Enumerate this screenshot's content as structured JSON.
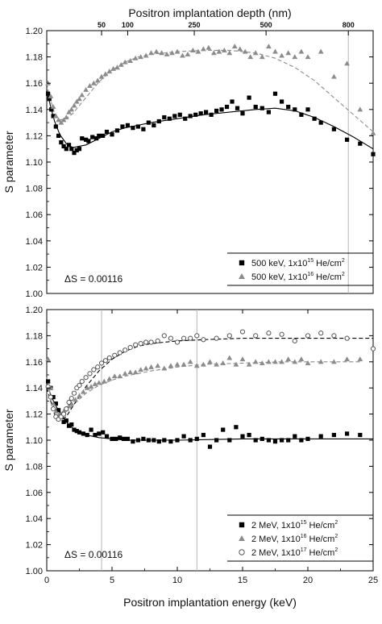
{
  "chart_data": [
    {
      "type": "scatter",
      "panel": "top",
      "title": "",
      "top_axis_label": "Positron implantation depth (nm)",
      "top_ticks": [
        "50",
        "100",
        "250",
        "500",
        "800"
      ],
      "top_ticks_energy_keV": [
        4.2,
        6.2,
        11.3,
        16.8,
        23.1
      ],
      "xlabel": "",
      "ylabel": "S parameter",
      "xlim": [
        0,
        25
      ],
      "ylim": [
        1.0,
        1.2
      ],
      "yticks": [
        "1.00",
        "1.02",
        "1.04",
        "1.06",
        "1.08",
        "1.10",
        "1.12",
        "1.14",
        "1.16",
        "1.18",
        "1.20"
      ],
      "vlines_keV": [
        23.1
      ],
      "annotation": "ΔS = 0.00116",
      "legend_position": "bottom-right",
      "series": [
        {
          "name": "500 keV, 1x10^15 He/cm^2",
          "legend_main": "500 keV, 1x10",
          "legend_exp": "15",
          "legend_unit": "He/cm",
          "legend_unit_exp": "2",
          "marker": "square",
          "color": "#000000",
          "x": [
            0.1,
            0.2,
            0.35,
            0.5,
            0.7,
            0.9,
            1.1,
            1.3,
            1.5,
            1.7,
            1.9,
            2.1,
            2.3,
            2.5,
            2.7,
            3.0,
            3.2,
            3.5,
            3.8,
            4.0,
            4.3,
            4.6,
            5.0,
            5.4,
            5.8,
            6.2,
            6.6,
            7.0,
            7.4,
            7.8,
            8.2,
            8.6,
            9.0,
            9.4,
            9.8,
            10.2,
            10.6,
            11.0,
            11.4,
            11.8,
            12.2,
            12.6,
            13.0,
            13.4,
            13.8,
            14.2,
            14.6,
            15.0,
            15.5,
            16.0,
            16.5,
            17.0,
            17.5,
            18.0,
            18.5,
            19.0,
            19.5,
            20.0,
            20.5,
            21.0,
            22.0,
            23.0,
            24.0,
            25.0
          ],
          "y": [
            1.152,
            1.148,
            1.14,
            1.135,
            1.127,
            1.12,
            1.115,
            1.112,
            1.11,
            1.113,
            1.11,
            1.107,
            1.109,
            1.11,
            1.118,
            1.117,
            1.116,
            1.119,
            1.118,
            1.12,
            1.12,
            1.123,
            1.121,
            1.124,
            1.127,
            1.128,
            1.126,
            1.127,
            1.125,
            1.13,
            1.128,
            1.131,
            1.134,
            1.133,
            1.135,
            1.136,
            1.133,
            1.135,
            1.136,
            1.137,
            1.138,
            1.136,
            1.139,
            1.14,
            1.142,
            1.146,
            1.141,
            1.137,
            1.149,
            1.142,
            1.141,
            1.138,
            1.152,
            1.146,
            1.142,
            1.14,
            1.136,
            1.14,
            1.133,
            1.13,
            1.125,
            1.117,
            1.114,
            1.106
          ]
        },
        {
          "name": "500 keV, 1x10^16 He/cm^2",
          "legend_main": "500 keV, 1x10",
          "legend_exp": "16",
          "legend_unit": "He/cm",
          "legend_unit_exp": "2",
          "marker": "triangle",
          "color": "#8c8c8c",
          "x": [
            0.1,
            0.3,
            0.5,
            0.7,
            0.9,
            1.1,
            1.3,
            1.5,
            1.7,
            1.9,
            2.1,
            2.3,
            2.5,
            2.7,
            3.0,
            3.3,
            3.6,
            3.9,
            4.2,
            4.5,
            4.8,
            5.1,
            5.4,
            5.7,
            6.0,
            6.4,
            6.8,
            7.2,
            7.6,
            8.0,
            8.4,
            8.8,
            9.2,
            9.6,
            10.0,
            10.4,
            10.8,
            11.2,
            11.6,
            12.0,
            12.4,
            12.8,
            13.2,
            13.6,
            14.0,
            14.4,
            14.8,
            15.2,
            15.6,
            16.0,
            16.5,
            17.0,
            17.5,
            18.0,
            18.5,
            19.0,
            19.5,
            20.0,
            21.0,
            22.0,
            23.0,
            24.0,
            25.0
          ],
          "y": [
            1.16,
            1.15,
            1.142,
            1.135,
            1.132,
            1.13,
            1.132,
            1.134,
            1.138,
            1.14,
            1.143,
            1.146,
            1.148,
            1.151,
            1.155,
            1.158,
            1.16,
            1.162,
            1.165,
            1.167,
            1.169,
            1.171,
            1.172,
            1.174,
            1.176,
            1.177,
            1.179,
            1.18,
            1.181,
            1.183,
            1.184,
            1.183,
            1.182,
            1.183,
            1.184,
            1.181,
            1.182,
            1.185,
            1.184,
            1.186,
            1.187,
            1.183,
            1.184,
            1.185,
            1.183,
            1.188,
            1.186,
            1.184,
            1.18,
            1.183,
            1.18,
            1.188,
            1.184,
            1.181,
            1.183,
            1.18,
            1.184,
            1.18,
            1.184,
            1.165,
            1.175,
            1.14,
            1.122
          ]
        }
      ],
      "fits": [
        {
          "name": "fit-500keV-1e15",
          "style": "solid",
          "color": "#000000",
          "x": [
            0,
            0.3,
            0.6,
            1.0,
            1.5,
            2.0,
            3.0,
            4.0,
            5.0,
            6.0,
            8.0,
            10.0,
            12.0,
            14.0,
            16.0,
            17.5,
            19.0,
            20.5,
            22.0,
            23.5,
            25.0
          ],
          "y": [
            1.155,
            1.142,
            1.131,
            1.121,
            1.114,
            1.111,
            1.113,
            1.118,
            1.123,
            1.126,
            1.13,
            1.133,
            1.136,
            1.138,
            1.14,
            1.141,
            1.139,
            1.134,
            1.127,
            1.119,
            1.11
          ]
        },
        {
          "name": "fit-500keV-1e16",
          "style": "dashed",
          "color": "#8c8c8c",
          "x": [
            0,
            0.3,
            0.6,
            1.0,
            1.5,
            2.0,
            3.0,
            4.0,
            5.0,
            6.0,
            7.0,
            8.0,
            10.0,
            12.0,
            14.0,
            16.0,
            17.5,
            19.0,
            20.5,
            22.0,
            23.5,
            25.0
          ],
          "y": [
            1.16,
            1.147,
            1.137,
            1.132,
            1.133,
            1.137,
            1.149,
            1.161,
            1.17,
            1.176,
            1.18,
            1.182,
            1.184,
            1.185,
            1.185,
            1.183,
            1.179,
            1.172,
            1.162,
            1.149,
            1.136,
            1.123
          ]
        }
      ]
    },
    {
      "type": "scatter",
      "panel": "bottom",
      "title": "",
      "xlabel": "Positron implantation energy (keV)",
      "ylabel": "S parameter",
      "xlim": [
        0,
        25
      ],
      "ylim": [
        1.0,
        1.2
      ],
      "xticks": [
        "0",
        "5",
        "10",
        "15",
        "20",
        "25"
      ],
      "yticks": [
        "1.00",
        "1.02",
        "1.04",
        "1.06",
        "1.08",
        "1.10",
        "1.12",
        "1.14",
        "1.16",
        "1.18",
        "1.20"
      ],
      "vlines_keV": [
        4.2,
        11.5
      ],
      "annotation": "ΔS = 0.00116",
      "legend_position": "bottom-right",
      "series": [
        {
          "name": "2 MeV, 1x10^15 He/cm^2",
          "legend_main": "2 MeV, 1x10",
          "legend_exp": "15",
          "legend_unit": "He/cm",
          "legend_unit_exp": "2",
          "marker": "square",
          "color": "#000000",
          "x": [
            0.1,
            0.3,
            0.5,
            0.7,
            0.9,
            1.1,
            1.3,
            1.5,
            1.7,
            1.9,
            2.1,
            2.3,
            2.5,
            2.8,
            3.1,
            3.4,
            3.7,
            4.0,
            4.3,
            4.6,
            5.0,
            5.3,
            5.6,
            5.9,
            6.2,
            6.6,
            7.0,
            7.4,
            7.8,
            8.2,
            8.6,
            9.0,
            9.5,
            10.0,
            10.5,
            11.0,
            11.5,
            12.0,
            12.5,
            13.0,
            13.5,
            14.0,
            14.5,
            15.0,
            15.5,
            16.0,
            16.5,
            17.0,
            17.5,
            18.0,
            18.5,
            19.0,
            19.5,
            20.0,
            21.0,
            22.0,
            23.0,
            24.0
          ],
          "y": [
            1.145,
            1.14,
            1.133,
            1.128,
            1.123,
            1.118,
            1.114,
            1.115,
            1.111,
            1.112,
            1.108,
            1.107,
            1.106,
            1.105,
            1.104,
            1.108,
            1.104,
            1.105,
            1.106,
            1.103,
            1.101,
            1.101,
            1.102,
            1.101,
            1.101,
            1.099,
            1.1,
            1.101,
            1.1,
            1.1,
            1.099,
            1.1,
            1.099,
            1.1,
            1.103,
            1.1,
            1.101,
            1.104,
            1.095,
            1.1,
            1.108,
            1.1,
            1.11,
            1.103,
            1.104,
            1.1,
            1.101,
            1.1,
            1.099,
            1.1,
            1.1,
            1.103,
            1.1,
            1.101,
            1.103,
            1.104,
            1.105,
            1.104
          ]
        },
        {
          "name": "2 MeV, 1x10^16 He/cm^2",
          "legend_main": "2 MeV, 1x10",
          "legend_exp": "16",
          "legend_unit": "He/cm",
          "legend_unit_exp": "2",
          "marker": "triangle",
          "color": "#8c8c8c",
          "x": [
            0.1,
            0.3,
            0.5,
            0.7,
            0.9,
            1.1,
            1.3,
            1.5,
            1.7,
            1.9,
            2.2,
            2.5,
            2.8,
            3.1,
            3.4,
            3.7,
            4.0,
            4.4,
            4.8,
            5.2,
            5.6,
            6.0,
            6.4,
            6.8,
            7.2,
            7.6,
            8.0,
            8.5,
            9.0,
            9.5,
            10.0,
            10.5,
            11.0,
            11.5,
            12.0,
            12.5,
            13.0,
            13.5,
            14.0,
            14.5,
            15.0,
            15.5,
            16.0,
            16.5,
            17.0,
            17.5,
            18.0,
            18.5,
            19.0,
            19.5,
            20.0,
            21.0,
            22.0,
            23.0,
            24.0
          ],
          "y": [
            1.162,
            1.14,
            1.128,
            1.122,
            1.119,
            1.12,
            1.122,
            1.124,
            1.126,
            1.128,
            1.131,
            1.134,
            1.137,
            1.14,
            1.141,
            1.143,
            1.144,
            1.145,
            1.147,
            1.149,
            1.149,
            1.151,
            1.152,
            1.152,
            1.154,
            1.155,
            1.156,
            1.157,
            1.155,
            1.157,
            1.158,
            1.158,
            1.16,
            1.157,
            1.158,
            1.16,
            1.158,
            1.159,
            1.163,
            1.158,
            1.162,
            1.158,
            1.16,
            1.159,
            1.16,
            1.16,
            1.16,
            1.162,
            1.16,
            1.162,
            1.159,
            1.16,
            1.16,
            1.162,
            1.162
          ]
        },
        {
          "name": "2 MeV, 1x10^17 He/cm^2",
          "legend_main": "2 MeV, 1x10",
          "legend_exp": "17",
          "legend_unit": "He/cm",
          "legend_unit_exp": "2",
          "marker": "open-circle",
          "color": "#555555",
          "x": [
            0.1,
            0.3,
            0.5,
            0.7,
            0.9,
            1.1,
            1.3,
            1.5,
            1.7,
            1.9,
            2.1,
            2.3,
            2.5,
            2.7,
            3.0,
            3.3,
            3.6,
            3.9,
            4.2,
            4.5,
            4.8,
            5.2,
            5.6,
            6.0,
            6.4,
            6.8,
            7.2,
            7.6,
            8.0,
            8.5,
            9.0,
            9.5,
            10.0,
            10.5,
            11.0,
            11.5,
            12.0,
            13.0,
            14.0,
            15.0,
            16.0,
            17.0,
            18.0,
            19.0,
            20.0,
            21.0,
            22.0,
            23.0,
            25.0
          ],
          "y": [
            1.141,
            1.133,
            1.124,
            1.118,
            1.116,
            1.118,
            1.12,
            1.124,
            1.129,
            1.132,
            1.136,
            1.14,
            1.142,
            1.145,
            1.148,
            1.151,
            1.154,
            1.156,
            1.159,
            1.161,
            1.163,
            1.165,
            1.167,
            1.169,
            1.171,
            1.173,
            1.174,
            1.175,
            1.175,
            1.176,
            1.18,
            1.178,
            1.175,
            1.178,
            1.178,
            1.18,
            1.177,
            1.178,
            1.18,
            1.183,
            1.18,
            1.182,
            1.181,
            1.176,
            1.18,
            1.182,
            1.18,
            1.178,
            1.17
          ]
        }
      ],
      "fits": [
        {
          "name": "fit-2MeV-1e15",
          "style": "solid",
          "color": "#000000",
          "x": [
            0,
            0.3,
            0.6,
            1.0,
            1.5,
            2.0,
            2.5,
            3.0,
            3.5,
            4.0,
            5.0,
            6.0,
            8.0,
            10.0,
            15.0,
            20.0,
            25.0
          ],
          "y": [
            1.143,
            1.135,
            1.128,
            1.121,
            1.114,
            1.109,
            1.106,
            1.104,
            1.103,
            1.102,
            1.101,
            1.1,
            1.1,
            1.1,
            1.101,
            1.101,
            1.101
          ]
        },
        {
          "name": "fit-2MeV-1e16",
          "style": "dashed",
          "color": "#8c8c8c",
          "x": [
            0,
            0.3,
            0.6,
            1.0,
            1.5,
            2.0,
            3.0,
            4.0,
            5.0,
            6.0,
            8.0,
            10.0,
            12.0,
            15.0,
            18.0,
            21.0,
            24.0
          ],
          "y": [
            1.148,
            1.133,
            1.124,
            1.12,
            1.122,
            1.127,
            1.136,
            1.142,
            1.146,
            1.149,
            1.153,
            1.156,
            1.158,
            1.159,
            1.16,
            1.16,
            1.16
          ]
        },
        {
          "name": "fit-2MeV-1e17",
          "style": "dashed",
          "color": "#000000",
          "x": [
            0,
            0.3,
            0.6,
            1.0,
            1.5,
            2.0,
            3.0,
            4.0,
            5.0,
            6.0,
            7.0,
            8.0,
            10.0,
            12.0,
            15.0,
            18.0,
            21.0,
            25.0
          ],
          "y": [
            1.14,
            1.13,
            1.12,
            1.115,
            1.118,
            1.126,
            1.141,
            1.153,
            1.162,
            1.168,
            1.172,
            1.174,
            1.176,
            1.177,
            1.178,
            1.178,
            1.178,
            1.178
          ]
        }
      ]
    }
  ]
}
